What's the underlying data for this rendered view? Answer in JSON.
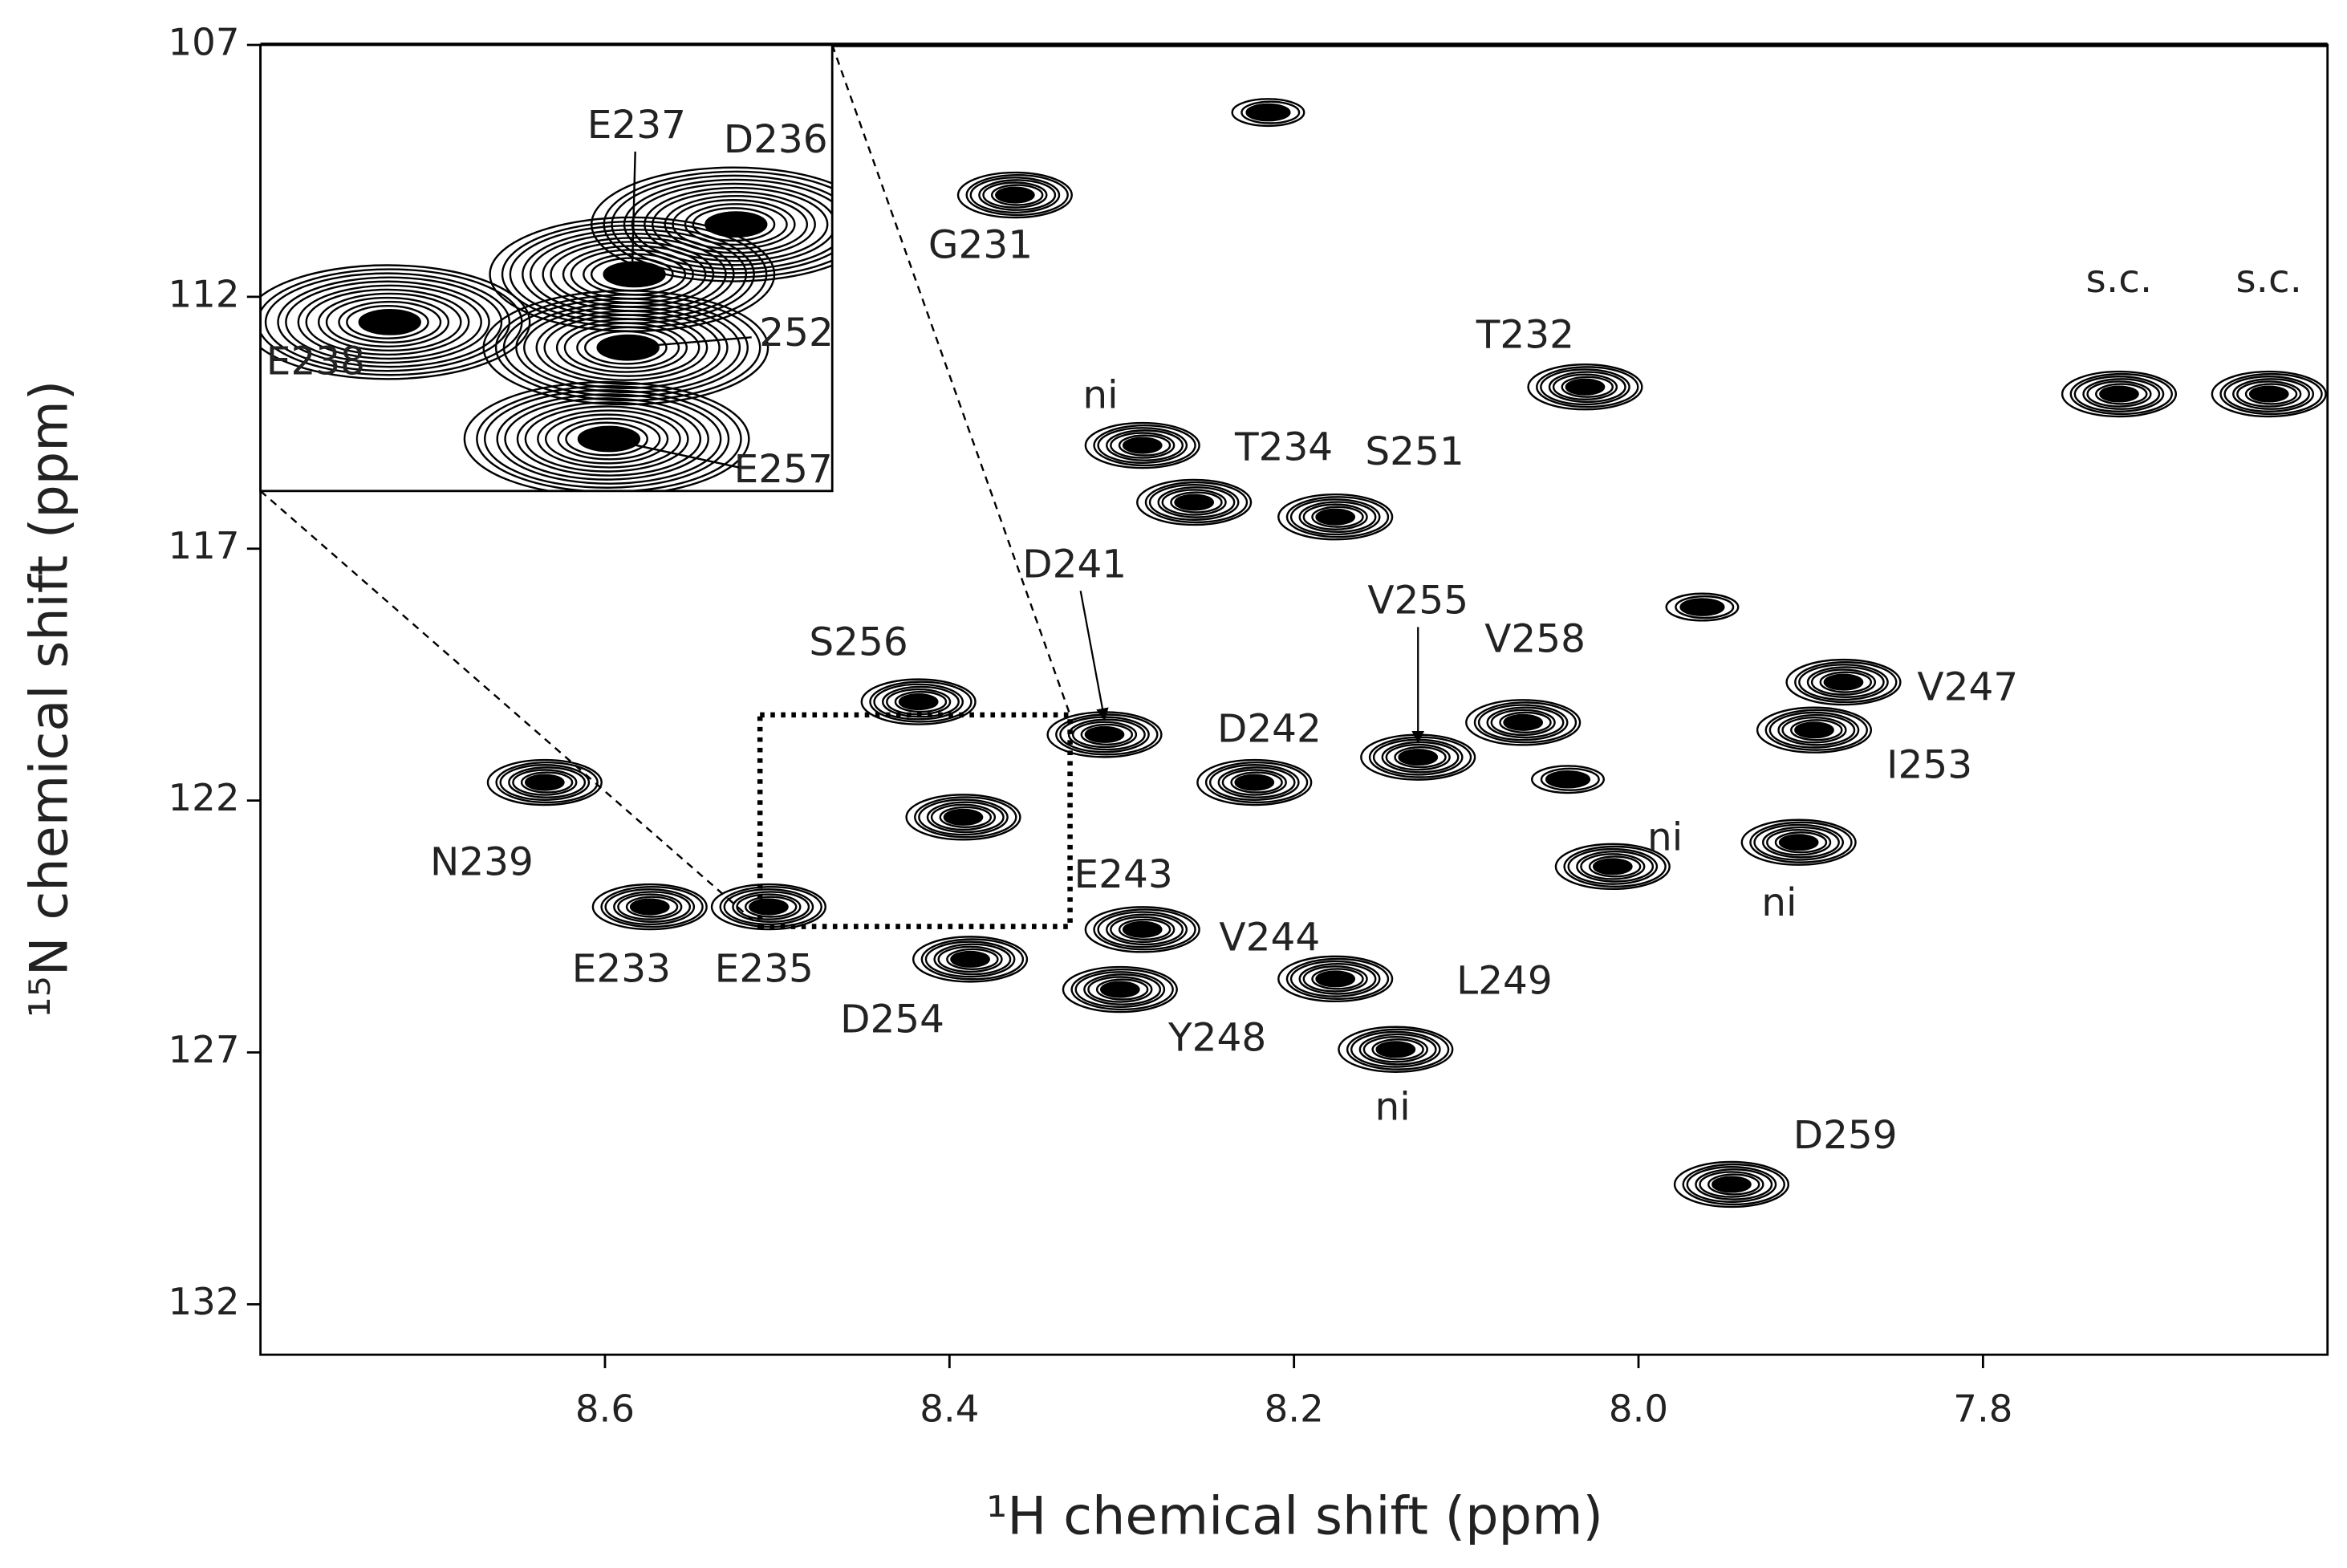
{
  "chart_data": {
    "type": "scatter",
    "x_label": "¹H chemical shift (ppm)",
    "y_label": "¹⁵N chemical shift (ppm)",
    "xlim": [
      8.8,
      7.6
    ],
    "ylim": [
      107,
      133
    ],
    "xticks": [
      8.6,
      8.4,
      8.2,
      {
        "value": 8,
        "label": "8.0"
      },
      7.8
    ],
    "yticks": [
      107,
      112,
      117,
      122,
      127,
      132
    ],
    "color": "#000000",
    "labels": [
      "G231",
      "T232",
      "ni",
      "T234",
      "S251",
      "D241",
      "S256",
      "V255",
      "V258",
      "V247",
      "I253",
      "D242",
      "E243",
      "N239",
      "E233",
      "E235",
      "D254",
      "Y248",
      "V244",
      "L249",
      "ni",
      "ni",
      "ni",
      "D259",
      "s.c.",
      "s.c.",
      null,
      null,
      null
    ],
    "x": [
      8.362,
      8.031,
      8.288,
      8.258,
      8.176,
      8.31,
      8.418,
      8.128,
      8.067,
      7.881,
      7.898,
      8.223,
      8.392,
      8.635,
      8.574,
      8.505,
      8.388,
      8.301,
      8.288,
      8.176,
      8.141,
      7.907,
      8.015,
      7.946,
      7.721,
      7.634,
      8.215,
      7.963,
      8.041
    ],
    "values": [
      109.98,
      113.79,
      114.95,
      116.08,
      116.37,
      120.69,
      120.04,
      121.14,
      120.45,
      119.65,
      120.6,
      121.64,
      122.33,
      121.64,
      124.11,
      124.11,
      125.15,
      125.75,
      124.56,
      125.54,
      126.94,
      122.83,
      123.31,
      129.62,
      113.93,
      113.93,
      108.34,
      118.16,
      121.58
    ],
    "inset": {
      "xlim": [
        8.51,
        8.33
      ],
      "ylim": [
        120.3,
        124.5
      ],
      "labels": [
        "E237",
        "D236",
        "E238",
        "252",
        "E257"
      ],
      "x": [
        8.393,
        8.361,
        8.47,
        8.395,
        8.401
      ],
      "values": [
        122.46,
        121.99,
        122.91,
        123.15,
        124.01
      ]
    }
  }
}
